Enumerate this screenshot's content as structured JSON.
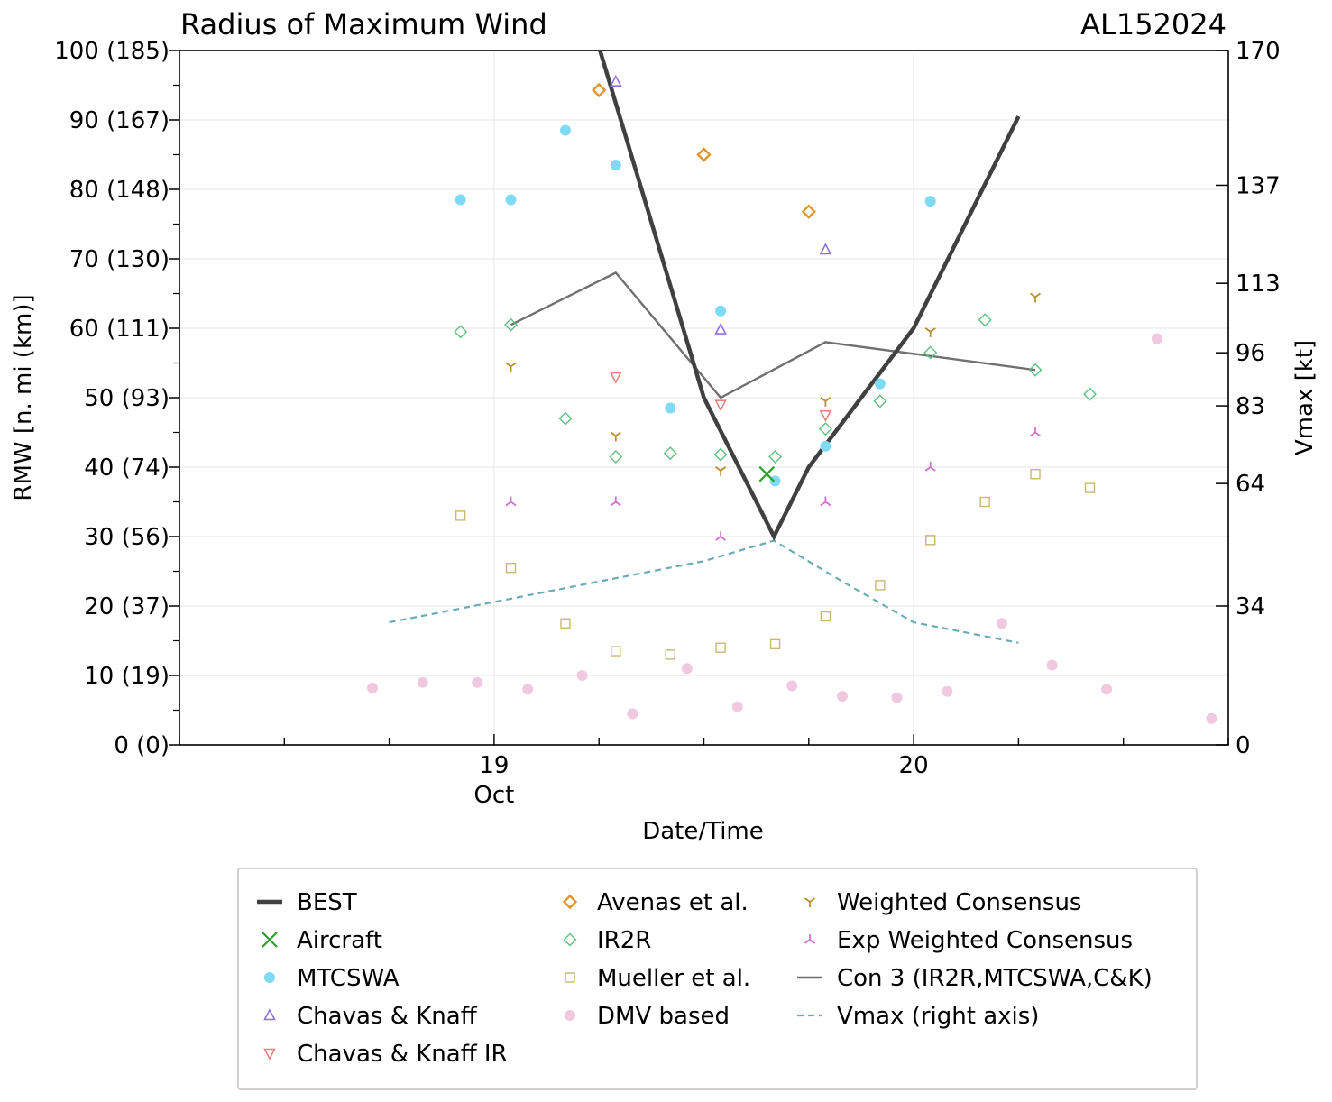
{
  "colors": {
    "best": "#404040",
    "aircraft": "#2ca02c",
    "mtcswa": "#7fdbf5",
    "chavas_knaff": "#9370db",
    "chavas_knaff_ir": "#e88080",
    "avenas": "#e0962a",
    "ir2r": "#5fbf80",
    "mueller": "#c8b870",
    "dmv": "#f0c8e0",
    "weighted": "#b8902a",
    "exp_weighted": "#d070d0",
    "con3": "#707070",
    "vmax": "#6aabb8",
    "grid": "#e6e6e6"
  },
  "chart_data": {
    "type": "line",
    "title": "Radius of Maximum Wind",
    "storm_id": "AL152024",
    "xlabel": "Date/Time",
    "ylabel": "RMW [n. mi (km)]",
    "ylabel_right": "Vmax [kt]",
    "x_unit": "day of October 2024 (fractional)",
    "xlim": [
      18.25,
      20.75
    ],
    "ylim": [
      0,
      100
    ],
    "ylim_right": [
      0,
      170
    ],
    "y_ticks": [
      0,
      10,
      20,
      30,
      40,
      50,
      60,
      70,
      80,
      90,
      100
    ],
    "y_tick_labels": [
      "0 (0)",
      "10 (19)",
      "20 (37)",
      "30 (56)",
      "40 (74)",
      "50 (93)",
      "60 (111)",
      "70 (130)",
      "80 (148)",
      "90 (167)",
      "100 (185)"
    ],
    "y_right_ticks": [
      0,
      34,
      64,
      83,
      96,
      113,
      137,
      170
    ],
    "y_right_tick_labels": [
      "0",
      "34",
      "64",
      "83",
      "96",
      "113",
      "137",
      "170"
    ],
    "x_ticks": [
      19,
      20
    ],
    "x_tick_labels": [
      "19",
      "20"
    ],
    "x_tick_sublabel": "Oct",
    "series": [
      {
        "key": "best",
        "name": "BEST",
        "style": "line",
        "x": [
          19.25,
          19.5,
          19.667,
          19.75,
          20.0,
          20.25
        ],
        "y": [
          100.5,
          50,
          30,
          40,
          60,
          90.5
        ]
      },
      {
        "key": "aircraft",
        "name": "Aircraft",
        "style": "x",
        "x": [
          19.65
        ],
        "y": [
          39
        ]
      },
      {
        "key": "mtcswa",
        "name": "MTCSWA",
        "style": "circle",
        "x": [
          18.92,
          19.04,
          19.17,
          19.29,
          19.42,
          19.54,
          19.67,
          19.79,
          19.92,
          20.04
        ],
        "y": [
          78.5,
          78.5,
          88.5,
          83.5,
          48.5,
          62.5,
          38,
          43,
          52,
          78.3
        ]
      },
      {
        "key": "chavas_knaff",
        "name": "Chavas & Knaff",
        "style": "triangle-up",
        "x": [
          19.29,
          19.54,
          19.79
        ],
        "y": [
          95.5,
          59.8,
          71.3
        ]
      },
      {
        "key": "chavas_knaff_ir",
        "name": "Chavas & Knaff IR",
        "style": "triangle-down",
        "x": [
          19.29,
          19.54,
          19.79
        ],
        "y": [
          53,
          49,
          47.5
        ]
      },
      {
        "key": "avenas",
        "name": "Avenas et al.",
        "style": "diamond",
        "x": [
          19.25,
          19.5,
          19.75
        ],
        "y": [
          94.3,
          85,
          76.8
        ]
      },
      {
        "key": "ir2r",
        "name": "IR2R",
        "style": "diamond-open",
        "x": [
          18.92,
          19.04,
          19.17,
          19.29,
          19.42,
          19.54,
          19.67,
          19.79,
          19.92,
          20.04,
          20.17,
          20.29,
          20.42
        ],
        "y": [
          59.5,
          60.5,
          47,
          41.5,
          42,
          41.8,
          41.5,
          45.5,
          49.5,
          56.5,
          61.2,
          54,
          50.5
        ]
      },
      {
        "key": "mueller",
        "name": "Mueller et al.",
        "style": "square",
        "x": [
          18.92,
          19.04,
          19.17,
          19.29,
          19.42,
          19.54,
          19.67,
          19.79,
          19.92,
          20.04,
          20.17,
          20.29,
          20.42
        ],
        "y": [
          33,
          25.5,
          17.5,
          13.5,
          13,
          14,
          14.5,
          18.5,
          23,
          29.5,
          35,
          39,
          37
        ]
      },
      {
        "key": "dmv",
        "name": "DMV based",
        "style": "circle",
        "x": [
          18.71,
          18.83,
          18.96,
          19.08,
          19.21,
          19.33,
          19.46,
          19.58,
          19.71,
          19.83,
          19.96,
          20.08,
          20.21,
          20.33,
          20.46,
          20.58,
          20.71
        ],
        "y": [
          8.2,
          9,
          9,
          8,
          10,
          4.5,
          11,
          5.5,
          8.5,
          7,
          6.8,
          7.7,
          17.5,
          11.5,
          8,
          58.5,
          3.8
        ]
      },
      {
        "key": "weighted",
        "name": "Weighted Consensus",
        "style": "tri-down",
        "x": [
          19.04,
          19.29,
          19.54,
          19.79,
          20.04,
          20.29
        ],
        "y": [
          54.5,
          44.5,
          39.5,
          49.5,
          59.5,
          64.5
        ]
      },
      {
        "key": "exp_weighted",
        "name": "Exp Weighted Consensus",
        "style": "tri-up",
        "x": [
          19.04,
          19.29,
          19.54,
          19.79,
          20.04,
          20.29
        ],
        "y": [
          35,
          35,
          30,
          35,
          40,
          45
        ]
      },
      {
        "key": "con3",
        "name": "Con 3 (IR2R,MTCSWA,C&K)",
        "style": "line",
        "x": [
          19.04,
          19.29,
          19.54,
          19.79,
          20.29
        ],
        "y": [
          60.5,
          68,
          50,
          58,
          54
        ]
      },
      {
        "key": "vmax",
        "name": "Vmax (right axis)",
        "style": "dashed",
        "axis": "right",
        "x": [
          18.75,
          19.0,
          19.25,
          19.5,
          19.667,
          19.83,
          20.0,
          20.25
        ],
        "y": [
          30,
          35,
          40,
          45,
          50,
          40,
          30,
          25
        ]
      }
    ],
    "legend": {
      "placement": "below",
      "columns": [
        [
          "best",
          "aircraft",
          "mtcswa",
          "chavas_knaff",
          "chavas_knaff_ir"
        ],
        [
          "avenas",
          "ir2r",
          "mueller",
          "dmv"
        ],
        [
          "weighted",
          "exp_weighted",
          "con3",
          "vmax"
        ]
      ]
    }
  }
}
